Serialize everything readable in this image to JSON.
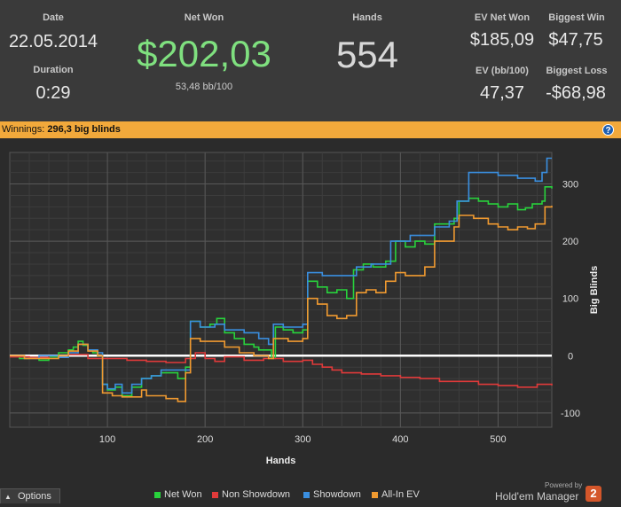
{
  "stats": {
    "date_label": "Date",
    "date_value": "22.05.2014",
    "duration_label": "Duration",
    "duration_value": "0:29",
    "netwon_label": "Net Won",
    "netwon_value": "$202,03",
    "netwon_bb": "53,48 bb/100",
    "hands_label": "Hands",
    "hands_value": "554",
    "evnet_label": "EV Net Won",
    "evnet_value": "$185,09",
    "evbb_label": "EV (bb/100)",
    "evbb_value": "47,37",
    "bigwin_label": "Biggest Win",
    "bigwin_value": "$47,75",
    "bigloss_label": "Biggest Loss",
    "bigloss_value": "-$68,98"
  },
  "winnings_bar": {
    "label": "Winnings:",
    "value": "296,3 big blinds",
    "help_icon": "?"
  },
  "colors": {
    "net_won": "#28d23c",
    "non_showdown": "#e03a3a",
    "showdown": "#3a8fe0",
    "all_in_ev": "#f09a30",
    "accent_bar": "#f2a93b",
    "netwon_text": "#7fe07f"
  },
  "chart_data": {
    "type": "line",
    "xlabel": "Hands",
    "ylabel": "Big Blinds",
    "xlim": [
      0,
      555
    ],
    "ylim": [
      -125,
      355
    ],
    "xticks": [
      100,
      200,
      300,
      400,
      500
    ],
    "yticks": [
      -100,
      0,
      100,
      200,
      300
    ],
    "grid": true,
    "legend_position": "bottom",
    "zero_line": true,
    "series": [
      {
        "name": "Net Won",
        "color_key": "net_won",
        "points": [
          [
            0,
            0
          ],
          [
            10,
            -5
          ],
          [
            20,
            -3
          ],
          [
            30,
            -8
          ],
          [
            40,
            -2
          ],
          [
            50,
            5
          ],
          [
            60,
            10
          ],
          [
            65,
            15
          ],
          [
            70,
            25
          ],
          [
            75,
            18
          ],
          [
            80,
            10
          ],
          [
            85,
            5
          ],
          [
            90,
            0
          ],
          [
            95,
            -50
          ],
          [
            100,
            -60
          ],
          [
            108,
            -55
          ],
          [
            115,
            -70
          ],
          [
            125,
            -55
          ],
          [
            135,
            -40
          ],
          [
            145,
            -35
          ],
          [
            155,
            -30
          ],
          [
            165,
            -30
          ],
          [
            172,
            -40
          ],
          [
            180,
            -20
          ],
          [
            185,
            60
          ],
          [
            195,
            50
          ],
          [
            205,
            55
          ],
          [
            212,
            65
          ],
          [
            220,
            40
          ],
          [
            230,
            30
          ],
          [
            240,
            20
          ],
          [
            250,
            15
          ],
          [
            255,
            10
          ],
          [
            262,
            10
          ],
          [
            268,
            -5
          ],
          [
            272,
            50
          ],
          [
            280,
            45
          ],
          [
            290,
            40
          ],
          [
            300,
            45
          ],
          [
            305,
            130
          ],
          [
            315,
            120
          ],
          [
            325,
            110
          ],
          [
            335,
            115
          ],
          [
            345,
            100
          ],
          [
            352,
            150
          ],
          [
            362,
            160
          ],
          [
            372,
            155
          ],
          [
            385,
            165
          ],
          [
            395,
            200
          ],
          [
            405,
            190
          ],
          [
            415,
            200
          ],
          [
            425,
            195
          ],
          [
            435,
            230
          ],
          [
            445,
            230
          ],
          [
            455,
            240
          ],
          [
            460,
            270
          ],
          [
            470,
            275
          ],
          [
            480,
            270
          ],
          [
            490,
            265
          ],
          [
            500,
            260
          ],
          [
            510,
            265
          ],
          [
            520,
            255
          ],
          [
            528,
            258
          ],
          [
            535,
            265
          ],
          [
            545,
            270
          ],
          [
            548,
            295
          ],
          [
            555,
            292
          ]
        ]
      },
      {
        "name": "Non Showdown",
        "color_key": "non_showdown",
        "points": [
          [
            0,
            -2
          ],
          [
            20,
            -3
          ],
          [
            40,
            0
          ],
          [
            60,
            2
          ],
          [
            80,
            -5
          ],
          [
            100,
            -5
          ],
          [
            120,
            -8
          ],
          [
            140,
            -10
          ],
          [
            160,
            -12
          ],
          [
            180,
            -5
          ],
          [
            190,
            5
          ],
          [
            200,
            -5
          ],
          [
            210,
            -10
          ],
          [
            220,
            -2
          ],
          [
            240,
            -8
          ],
          [
            260,
            -5
          ],
          [
            280,
            -10
          ],
          [
            300,
            -8
          ],
          [
            310,
            -15
          ],
          [
            320,
            -20
          ],
          [
            330,
            -25
          ],
          [
            340,
            -30
          ],
          [
            360,
            -32
          ],
          [
            380,
            -35
          ],
          [
            400,
            -38
          ],
          [
            420,
            -40
          ],
          [
            440,
            -45
          ],
          [
            460,
            -45
          ],
          [
            480,
            -50
          ],
          [
            500,
            -52
          ],
          [
            520,
            -55
          ],
          [
            540,
            -50
          ],
          [
            555,
            -52
          ]
        ]
      },
      {
        "name": "Showdown",
        "color_key": "showdown",
        "points": [
          [
            0,
            0
          ],
          [
            15,
            -5
          ],
          [
            30,
            0
          ],
          [
            50,
            -3
          ],
          [
            60,
            5
          ],
          [
            70,
            20
          ],
          [
            80,
            10
          ],
          [
            90,
            5
          ],
          [
            95,
            -50
          ],
          [
            100,
            -58
          ],
          [
            108,
            -50
          ],
          [
            115,
            -65
          ],
          [
            125,
            -50
          ],
          [
            135,
            -40
          ],
          [
            145,
            -35
          ],
          [
            155,
            -25
          ],
          [
            165,
            -25
          ],
          [
            175,
            -25
          ],
          [
            185,
            60
          ],
          [
            195,
            50
          ],
          [
            210,
            55
          ],
          [
            220,
            45
          ],
          [
            240,
            40
          ],
          [
            255,
            30
          ],
          [
            265,
            20
          ],
          [
            270,
            55
          ],
          [
            280,
            50
          ],
          [
            300,
            55
          ],
          [
            305,
            145
          ],
          [
            320,
            140
          ],
          [
            335,
            140
          ],
          [
            350,
            140
          ],
          [
            355,
            155
          ],
          [
            370,
            160
          ],
          [
            390,
            200
          ],
          [
            410,
            210
          ],
          [
            430,
            210
          ],
          [
            435,
            225
          ],
          [
            450,
            235
          ],
          [
            458,
            270
          ],
          [
            470,
            320
          ],
          [
            490,
            320
          ],
          [
            500,
            315
          ],
          [
            510,
            315
          ],
          [
            520,
            310
          ],
          [
            530,
            310
          ],
          [
            538,
            305
          ],
          [
            545,
            320
          ],
          [
            550,
            345
          ],
          [
            555,
            345
          ]
        ]
      },
      {
        "name": "All-In EV",
        "color_key": "all_in_ev",
        "points": [
          [
            0,
            0
          ],
          [
            15,
            -5
          ],
          [
            30,
            -5
          ],
          [
            50,
            0
          ],
          [
            60,
            8
          ],
          [
            70,
            20
          ],
          [
            80,
            8
          ],
          [
            90,
            0
          ],
          [
            95,
            -65
          ],
          [
            105,
            -70
          ],
          [
            115,
            -72
          ],
          [
            125,
            -72
          ],
          [
            135,
            -60
          ],
          [
            140,
            -70
          ],
          [
            150,
            -70
          ],
          [
            160,
            -75
          ],
          [
            172,
            -80
          ],
          [
            180,
            -30
          ],
          [
            185,
            30
          ],
          [
            195,
            25
          ],
          [
            205,
            25
          ],
          [
            220,
            15
          ],
          [
            235,
            5
          ],
          [
            250,
            0
          ],
          [
            265,
            -5
          ],
          [
            270,
            30
          ],
          [
            285,
            25
          ],
          [
            300,
            30
          ],
          [
            305,
            100
          ],
          [
            315,
            90
          ],
          [
            325,
            70
          ],
          [
            335,
            65
          ],
          [
            345,
            70
          ],
          [
            355,
            110
          ],
          [
            365,
            115
          ],
          [
            375,
            110
          ],
          [
            385,
            130
          ],
          [
            395,
            145
          ],
          [
            405,
            140
          ],
          [
            415,
            140
          ],
          [
            425,
            155
          ],
          [
            435,
            200
          ],
          [
            445,
            200
          ],
          [
            455,
            225
          ],
          [
            460,
            245
          ],
          [
            475,
            240
          ],
          [
            490,
            230
          ],
          [
            500,
            225
          ],
          [
            510,
            220
          ],
          [
            520,
            225
          ],
          [
            530,
            222
          ],
          [
            538,
            230
          ],
          [
            548,
            260
          ],
          [
            555,
            262
          ]
        ]
      }
    ]
  },
  "options_button": {
    "label": "Options",
    "arrow_icon": "▲"
  },
  "legend": [
    {
      "label": "Net Won",
      "color_key": "net_won"
    },
    {
      "label": "Non Showdown",
      "color_key": "non_showdown"
    },
    {
      "label": "Showdown",
      "color_key": "showdown"
    },
    {
      "label": "All-In EV",
      "color_key": "all_in_ev"
    }
  ],
  "branding": {
    "powered": "Powered by",
    "name": "Hold'em Manager",
    "badge": "2"
  }
}
